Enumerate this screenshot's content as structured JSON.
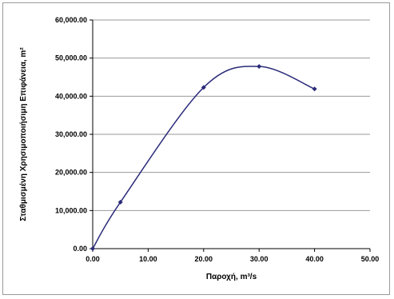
{
  "chart_data": {
    "type": "line",
    "title": "",
    "xlabel": "Παροχή, m³/s",
    "ylabel": "Σταθμισμένη Χρησιμοποιήσιμη Επιφάνεια, m²",
    "xlim": [
      0,
      50
    ],
    "ylim": [
      0,
      60000
    ],
    "x_ticks": [
      "0.00",
      "10.00",
      "20.00",
      "30.00",
      "40.00",
      "50.00"
    ],
    "y_ticks": [
      "0.00",
      "10,000.00",
      "20,000.00",
      "30,000.00",
      "40,000.00",
      "50,000.00",
      "60,000.00"
    ],
    "grid": "horizontal",
    "legend": "none",
    "series": [
      {
        "smooth": true,
        "color": "#2b2b7a",
        "points": [
          {
            "x": 0,
            "y": 0
          },
          {
            "x": 5,
            "y": 12200
          },
          {
            "x": 20,
            "y": 42300
          },
          {
            "x": 30,
            "y": 47800
          },
          {
            "x": 40,
            "y": 41900
          }
        ]
      }
    ]
  }
}
